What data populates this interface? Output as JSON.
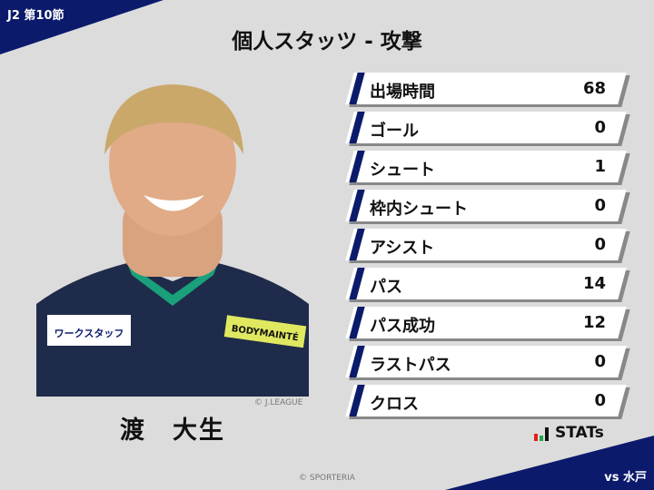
{
  "header": {
    "round": "J2 第10節",
    "title": "個人スタッツ - 攻撃",
    "opponent": "vs 水戸"
  },
  "player": {
    "name": "渡　大生",
    "photo_credit": "© J.LEAGUE",
    "sponsor_text": "ワークスタッフ",
    "chest_text": "BODYMAINTÉ"
  },
  "stats": [
    {
      "label": "出場時間",
      "value": "68"
    },
    {
      "label": "ゴール",
      "value": "0"
    },
    {
      "label": "シュート",
      "value": "1"
    },
    {
      "label": "枠内シュート",
      "value": "0"
    },
    {
      "label": "アシスト",
      "value": "0"
    },
    {
      "label": "パス",
      "value": "14"
    },
    {
      "label": "パス成功",
      "value": "12"
    },
    {
      "label": "ラストパス",
      "value": "0"
    },
    {
      "label": "クロス",
      "value": "0"
    }
  ],
  "logo": {
    "text": "STATs",
    "colors": [
      "#e0201c",
      "#1aa84a",
      "#111111"
    ]
  },
  "footer": {
    "copyright": "© SPORTERIA"
  },
  "colors": {
    "accent": "#0b1a6b",
    "background": "#dcdcdc"
  }
}
